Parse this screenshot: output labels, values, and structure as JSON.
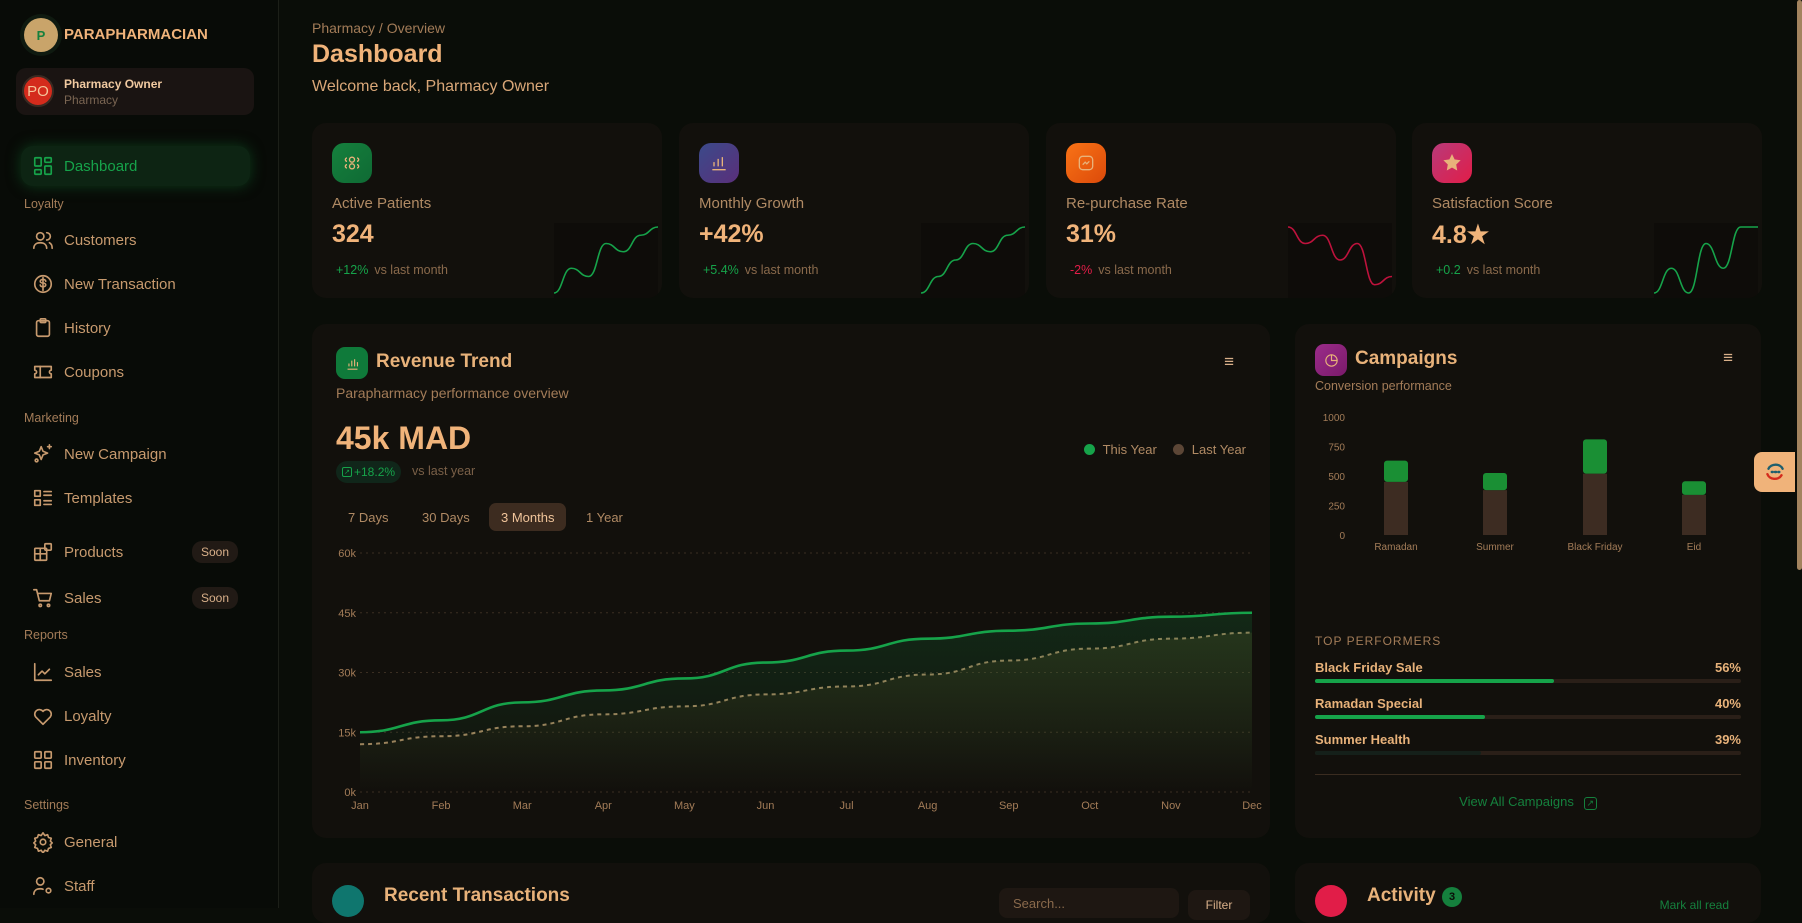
{
  "brand": {
    "logo_letter": "P",
    "name": "PARAPHARMACIAN"
  },
  "user": {
    "initials": "PO",
    "name": "Pharmacy Owner",
    "role": "Pharmacy"
  },
  "sidebar": {
    "dashboard": "Dashboard",
    "sections": {
      "loyalty": "Loyalty",
      "marketing": "Marketing",
      "reports": "Reports",
      "settings": "Settings"
    },
    "items": [
      {
        "label": "Customers",
        "icon": "users-icon"
      },
      {
        "label": "New Transaction",
        "icon": "dollar-badge-icon"
      },
      {
        "label": "History",
        "icon": "clipboard-icon"
      },
      {
        "label": "Coupons",
        "icon": "ticket-icon"
      },
      {
        "label": "New Campaign",
        "icon": "sparkles-icon"
      },
      {
        "label": "Templates",
        "icon": "list-layout-icon"
      },
      {
        "label": "Products",
        "icon": "blocks-icon",
        "badge": "Soon"
      },
      {
        "label": "Sales",
        "icon": "cart-icon",
        "badge": "Soon"
      },
      {
        "label": "Sales",
        "icon": "line-chart-icon"
      },
      {
        "label": "Loyalty",
        "icon": "heart-icon"
      },
      {
        "label": "Inventory",
        "icon": "grid-icon"
      },
      {
        "label": "General",
        "icon": "gear-icon"
      },
      {
        "label": "Staff",
        "icon": "user-cog-icon"
      }
    ]
  },
  "header": {
    "breadcrumb": "Pharmacy / Overview",
    "title": "Dashboard",
    "welcome": "Welcome back, Pharmacy Owner"
  },
  "kpis": [
    {
      "label": "Active Patients",
      "value": "324",
      "delta": "+12%",
      "vs": "vs last month",
      "trend": "up",
      "color": "#16a34a",
      "spark": [
        0,
        3,
        2,
        6,
        5,
        7,
        8
      ]
    },
    {
      "label": "Monthly Growth",
      "value": "+42%",
      "delta": "+5.4%",
      "vs": "vs last month",
      "trend": "up",
      "color": "#16a34a",
      "spark": [
        0,
        2,
        4,
        6,
        5,
        7,
        8
      ]
    },
    {
      "label": "Re-purchase Rate",
      "value": "31%",
      "delta": "-2%",
      "vs": "vs last month",
      "trend": "down",
      "color": "#be123c",
      "spark": [
        8,
        6,
        7,
        4,
        6,
        1,
        2
      ]
    },
    {
      "label": "Satisfaction Score",
      "value": "4.8★",
      "delta": "+0.2",
      "vs": "vs last month",
      "trend": "up",
      "color": "#16a34a",
      "spark": [
        0,
        3,
        0,
        6,
        3,
        8,
        8
      ]
    }
  ],
  "revenue": {
    "title": "Revenue Trend",
    "subtitle": "Parapharmacy performance overview",
    "total": "45k MAD",
    "change": "+18.2%",
    "change_vs": "vs last year",
    "tabs": [
      "7 Days",
      "30 Days",
      "3 Months",
      "1 Year"
    ],
    "active_tab": "3 Months"
  },
  "chart_data": [
    {
      "type": "line",
      "x": [
        "Jan",
        "Feb",
        "Mar",
        "Apr",
        "May",
        "Jun",
        "Jul",
        "Aug",
        "Sep",
        "Oct",
        "Nov",
        "Dec"
      ],
      "yticks": [
        "0k",
        "15k",
        "30k",
        "45k",
        "60k"
      ],
      "ylim": [
        0,
        60000
      ],
      "grid": true,
      "legend": "top-right",
      "series": [
        {
          "name": "This Year",
          "color": "#16a34a",
          "style": "solid",
          "values": [
            15000,
            18000,
            22500,
            25500,
            28500,
            32500,
            35500,
            38500,
            40500,
            42300,
            44000,
            45000
          ]
        },
        {
          "name": "Last Year",
          "color": "#5c4636",
          "style": "dashed",
          "values": [
            12000,
            14000,
            16500,
            19500,
            21500,
            24500,
            26500,
            29500,
            33000,
            36000,
            38500,
            40000
          ]
        }
      ]
    },
    {
      "type": "bar",
      "stacked": true,
      "categories": [
        "Ramadan",
        "Summer",
        "Black Friday",
        "Eid"
      ],
      "yticks": [
        "0",
        "250",
        "500",
        "750",
        "1000"
      ],
      "ylim": [
        0,
        1000
      ],
      "series": [
        {
          "color": "#3d2c22",
          "values": [
            450,
            380,
            520,
            340
          ]
        },
        {
          "color": "#1a8f34",
          "values": [
            180,
            145,
            290,
            115
          ]
        }
      ]
    }
  ],
  "campaigns": {
    "title": "Campaigns",
    "subtitle": "Conversion performance",
    "top_title": "TOP PERFORMERS",
    "performers": [
      {
        "name": "Black Friday Sale",
        "value": "56%",
        "pct": 56
      },
      {
        "name": "Ramadan Special",
        "value": "40%",
        "pct": 40
      },
      {
        "name": "Summer Health",
        "value": "39%",
        "pct": 39
      }
    ],
    "view_all": "View All Campaigns"
  },
  "transactions": {
    "title": "Recent Transactions",
    "search_placeholder": "Search...",
    "filter": "Filter"
  },
  "activity": {
    "title": "Activity",
    "count": "3",
    "mark_read": "Mark all read"
  }
}
